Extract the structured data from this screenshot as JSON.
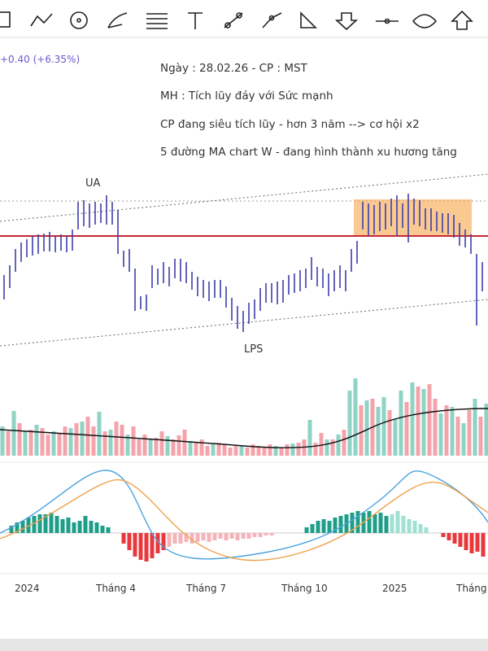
{
  "header": {
    "change": "+0.40 (+6.35%)"
  },
  "notes": [
    "Ngày : 28.02.26 - CP : MST",
    "MH : Tích lũy đáy với Sức mạnh",
    "CP đang siêu tích lũy - hơn 3 năm --> cơ hội x2",
    "5 đường MA chart W - đang hình thành xu hương tăng"
  ],
  "labels": {
    "ua": "UA",
    "lps": "LPS"
  },
  "time_axis": [
    "2024",
    "Tháng 4",
    "Tháng 7",
    "Tháng 10",
    "2025",
    "Tháng"
  ]
}
